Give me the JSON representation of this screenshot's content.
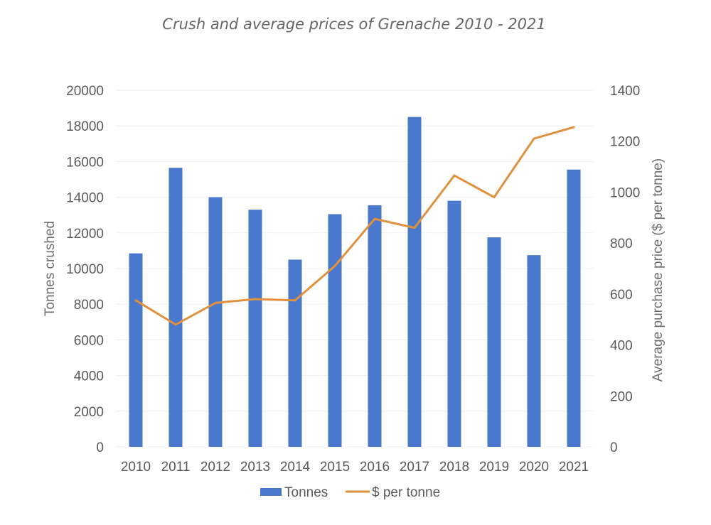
{
  "chart_data": {
    "type": "bar",
    "title": "Crush and average prices of Grenache 2010 - 2021",
    "categories": [
      "2010",
      "2011",
      "2012",
      "2013",
      "2014",
      "2015",
      "2016",
      "2017",
      "2018",
      "2019",
      "2020",
      "2021"
    ],
    "ylabel": "Tonnes crushed",
    "ylabel_right": "Average purchase price ($ per tonne)",
    "ylim": [
      0,
      20000
    ],
    "ylim_right": [
      0,
      1400
    ],
    "yticks": [
      "0",
      "2000",
      "4000",
      "6000",
      "8000",
      "10000",
      "12000",
      "14000",
      "16000",
      "18000",
      "20000"
    ],
    "yticks_right": [
      "0",
      "200",
      "400",
      "600",
      "800",
      "1000",
      "1200",
      "1400"
    ],
    "grid": true,
    "legend_position": "bottom",
    "series": [
      {
        "name": "Tonnes",
        "type": "bar",
        "axis": "left",
        "color": "#4a78cc",
        "values": [
          10850,
          15650,
          14000,
          13300,
          10500,
          13050,
          13550,
          18500,
          13800,
          11750,
          10750,
          15550
        ]
      },
      {
        "name": "$ per tonne",
        "type": "line",
        "axis": "right",
        "color": "#e0913e",
        "values": [
          575,
          480,
          565,
          580,
          575,
          710,
          895,
          860,
          1065,
          980,
          1210,
          1255
        ]
      }
    ]
  }
}
